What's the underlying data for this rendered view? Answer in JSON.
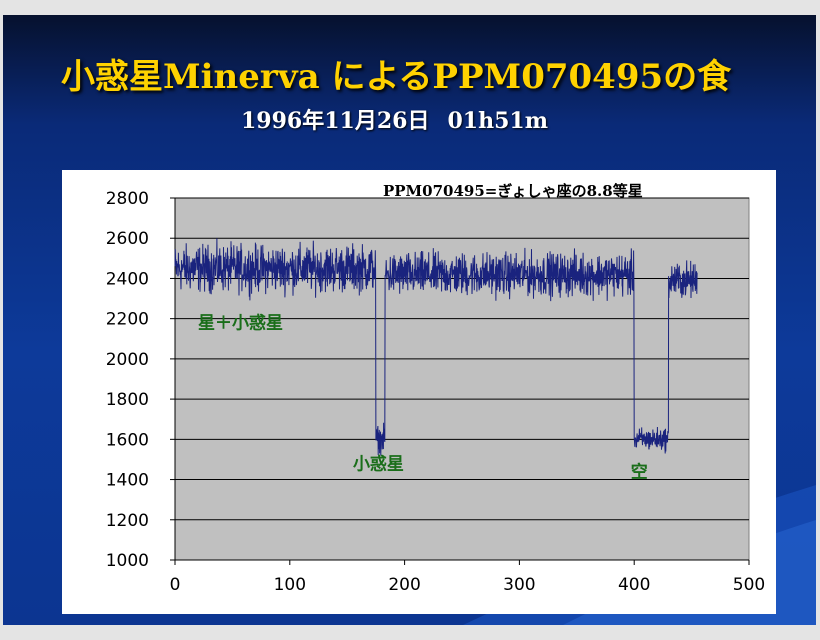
{
  "slide": {
    "title": "小惑星Minerva によるPPM070495の食",
    "subtitle_date": "1996年11月26日",
    "subtitle_time": "01h51m",
    "colors": {
      "title": "#ffd200",
      "background": "#0d3a9a",
      "plot_bg": "#c0c0c0",
      "series": "#1a237e",
      "annotation": "#1a6e1a"
    }
  },
  "chart_data": {
    "type": "line",
    "title": "",
    "note": "PPM070495=ぎょしゃ座の8.8等星",
    "xlabel": "",
    "ylabel": "",
    "xlim": [
      0,
      500
    ],
    "ylim": [
      1000,
      2800
    ],
    "x_ticks": [
      0,
      100,
      200,
      300,
      400,
      500
    ],
    "y_ticks": [
      1000,
      1200,
      1400,
      1600,
      1800,
      2000,
      2200,
      2400,
      2600,
      2800
    ],
    "grid": {
      "horizontal": true,
      "vertical": false
    },
    "legend": "none",
    "series": [
      {
        "color": "#1a237e",
        "segments": [
          {
            "x": [
              0,
              175
            ],
            "level": 2450,
            "noise": 70
          },
          {
            "x": [
              175,
              178
            ],
            "level": 1600,
            "noise": 40
          },
          {
            "x": [
              178,
              183
            ],
            "level": 1600,
            "noise": 40
          },
          {
            "x": [
              183,
              400
            ],
            "level": 2420,
            "noise": 65
          },
          {
            "x": [
              400,
              402
            ],
            "level": 1600,
            "noise": 30
          },
          {
            "x": [
              402,
              430
            ],
            "level": 1600,
            "noise": 35
          },
          {
            "x": [
              430,
              455
            ],
            "level": 2390,
            "noise": 55
          }
        ]
      }
    ],
    "annotations": [
      {
        "text": "星＋小惑星",
        "x": 20,
        "y": 2150
      },
      {
        "text": "小惑星",
        "x": 155,
        "y": 1450
      },
      {
        "text": "空",
        "x": 397,
        "y": 1410
      }
    ]
  }
}
